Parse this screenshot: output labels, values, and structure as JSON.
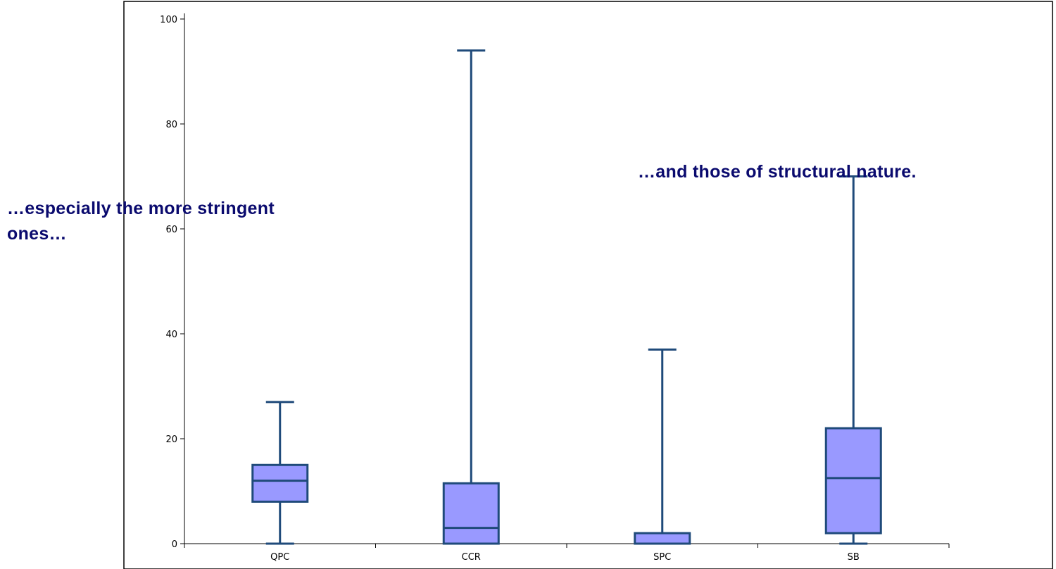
{
  "chart_data": {
    "type": "box",
    "categories": [
      "QPC",
      "CCR",
      "SPC",
      "SB"
    ],
    "boxes": [
      {
        "category": "QPC",
        "min": 0,
        "q1": 8,
        "median": 12,
        "q3": 15,
        "max": 27
      },
      {
        "category": "CCR",
        "min": 0,
        "q1": 0,
        "median": 3,
        "q3": 11.5,
        "max": 94
      },
      {
        "category": "SPC",
        "min": 0,
        "q1": 0,
        "median": 0,
        "q3": 2,
        "max": 37
      },
      {
        "category": "SB",
        "min": 0,
        "q1": 2,
        "median": 12.5,
        "q3": 22,
        "max": 70
      }
    ],
    "ylim": [
      0,
      100
    ],
    "yticks": [
      0,
      20,
      40,
      60,
      80,
      100
    ],
    "grid": false,
    "colors": {
      "box_fill": "#9999ff",
      "box_stroke": "#1f4a7a",
      "axis": "#000000",
      "annotation_text": "#0a0a6e"
    }
  },
  "annotations": {
    "left_line1": "…especially the more stringent",
    "left_line2": "ones…",
    "right": "…and those of structural nature."
  }
}
